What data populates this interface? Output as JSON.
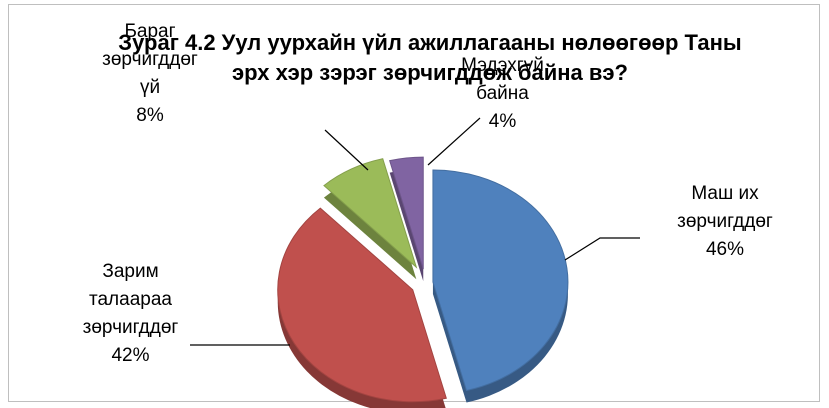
{
  "chart_data": {
    "type": "pie",
    "title": "Зураг 4.2 Уул уурхайн үйл ажиллагааны нөлөөгөөр Таны эрх хэр зэрэг зөрчигддөж байна вэ?",
    "categories": [
      "Маш их зөрчигддөг",
      "Зарим талаараа зөрчигддөг",
      "Бараг зөрчигддөгүй",
      "Мэдэхгүй байна"
    ],
    "values": [
      46,
      42,
      8,
      4
    ],
    "value_labels": [
      "46%",
      "42%",
      "8%",
      "4%"
    ],
    "colors": [
      "#4f81bd",
      "#c0504d",
      "#9bbb59",
      "#8064a2"
    ]
  }
}
